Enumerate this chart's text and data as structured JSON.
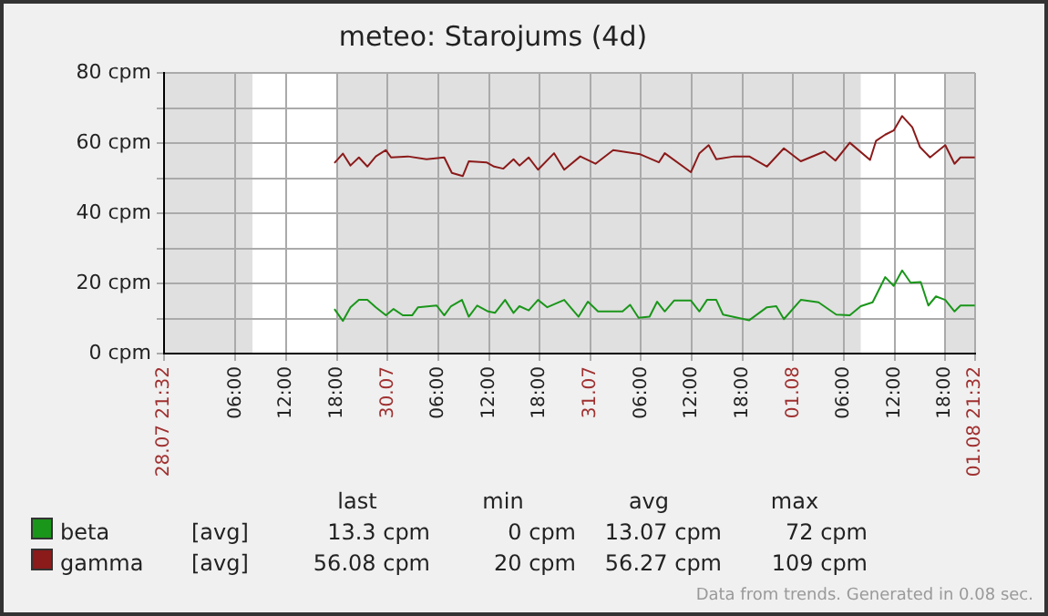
{
  "chart_data": {
    "type": "line",
    "title": "meteo: Starojums (4d)",
    "marker": "none",
    "grid": true,
    "legend": "bottom",
    "xlim": [
      "--07-28T21:32",
      "--08-01T21:32"
    ],
    "xticks": [
      {
        "value": "--07-28T21:32",
        "label": "28.07 21:32"
      },
      {
        "value": "--07-29T06:00",
        "label": "06:00"
      },
      {
        "value": "--07-29T12:00",
        "label": "12:00"
      },
      {
        "value": "--07-29T18:00",
        "label": "18:00"
      },
      {
        "value": "--07-30T00:00",
        "label": "30.07"
      },
      {
        "value": "--07-30T06:00",
        "label": "06:00"
      },
      {
        "value": "--07-30T12:00",
        "label": "12:00"
      },
      {
        "value": "--07-30T18:00",
        "label": "18:00"
      },
      {
        "value": "--07-31T00:00",
        "label": "31.07"
      },
      {
        "value": "--07-31T06:00",
        "label": "06:00"
      },
      {
        "value": "--07-31T12:00",
        "label": "12:00"
      },
      {
        "value": "--07-31T18:00",
        "label": "18:00"
      },
      {
        "value": "--08-01T00:00",
        "label": "01.08"
      },
      {
        "value": "--08-01T06:00",
        "label": "06:00"
      },
      {
        "value": "--08-01T12:00",
        "label": "12:00"
      },
      {
        "value": "--08-01T18:00",
        "label": "18:00"
      },
      {
        "value": "--08-01T21:32",
        "label": "01.08 21:32"
      }
    ],
    "ylim": [
      0,
      80
    ],
    "yticks": [
      {
        "value": 0,
        "label": "0 cpm"
      },
      {
        "value": 10,
        "label": null
      },
      {
        "value": 20,
        "label": "20 cpm"
      },
      {
        "value": 30,
        "label": null
      },
      {
        "value": 40,
        "label": "40 cpm"
      },
      {
        "value": 50,
        "label": null
      },
      {
        "value": 60,
        "label": "60 cpm"
      },
      {
        "value": 70,
        "label": null
      },
      {
        "value": 80,
        "label": "80 cpm"
      }
    ],
    "bands": [
      {
        "axis": "x",
        "from": "--07-28T21:32",
        "to": "--07-29T08:00",
        "color": "#e0e0e0"
      },
      {
        "axis": "x",
        "from": "--07-29T18:00",
        "to": "--08-01T08:00",
        "color": "#e0e0e0"
      },
      {
        "axis": "x",
        "from": "--08-01T18:00",
        "to": "--08-01T21:32",
        "color": "#e0e0e0"
      }
    ],
    "series": [
      {
        "name": "beta",
        "color": "#1a961a",
        "x": [
          "--07-29T17:42",
          "--07-29T18:42",
          "--07-29T19:36",
          "--07-29T20:36",
          "--07-29T21:36",
          "--07-29T22:36",
          "--07-29T23:48",
          "--07-30T00:42",
          "--07-30T01:48",
          "--07-30T02:54",
          "--07-30T03:36",
          "--07-30T05:48",
          "--07-30T06:42",
          "--07-30T07:30",
          "--07-30T08:48",
          "--07-30T09:36",
          "--07-30T10:36",
          "--07-30T11:54",
          "--07-30T12:42",
          "--07-30T13:54",
          "--07-30T14:54",
          "--07-30T15:36",
          "--07-30T16:42",
          "--07-30T17:48",
          "--07-30T18:54",
          "--07-30T20:54",
          "--07-30T22:36",
          "--07-30T23:42",
          "--07-31T00:54",
          "--07-31T03:48",
          "--07-31T04:42",
          "--07-31T05:42",
          "--07-31T07:00",
          "--07-31T07:54",
          "--07-31T08:48",
          "--07-31T09:54",
          "--07-31T11:54",
          "--07-31T12:54",
          "--07-31T13:48",
          "--07-31T14:54",
          "--07-31T15:42",
          "--07-31T18:48",
          "--07-31T20:54",
          "--07-31T22:00",
          "--07-31T22:54",
          "--08-01T00:54",
          "--08-01T03:00",
          "--08-01T05:06",
          "--08-01T06:42",
          "--08-01T08:00",
          "--08-01T09:24",
          "--08-01T10:54",
          "--08-01T11:54",
          "--08-01T12:54",
          "--08-01T13:54",
          "--08-01T15:06",
          "--08-01T16:00",
          "--08-01T16:54",
          "--08-01T18:00",
          "--08-01T19:06",
          "--08-01T19:48",
          "--08-01T21:30"
        ],
        "values": [
          12.7,
          9.3,
          13.2,
          15.3,
          15.3,
          13.2,
          10.9,
          12.7,
          10.9,
          10.9,
          13.2,
          13.7,
          10.9,
          13.5,
          15.3,
          10.5,
          13.7,
          12,
          11.6,
          15.3,
          11.6,
          13.5,
          12.3,
          15.3,
          13.2,
          15.3,
          10.5,
          14.8,
          12,
          12,
          13.9,
          10.2,
          10.5,
          14.8,
          12,
          15.1,
          15.1,
          12,
          15.3,
          15.3,
          11.1,
          9.5,
          13.2,
          13.5,
          9.8,
          15.3,
          14.6,
          11.1,
          10.9,
          13.5,
          14.6,
          21.8,
          19.3,
          23.7,
          20.2,
          20.4,
          13.7,
          16.3,
          15.3,
          12,
          13.7,
          13.7
        ]
      },
      {
        "name": "gamma",
        "color": "#8b1a1a",
        "x": [
          "--07-29T17:42",
          "--07-29T18:42",
          "--07-29T19:36",
          "--07-29T20:36",
          "--07-29T21:36",
          "--07-29T22:36",
          "--07-29T23:48",
          "--07-30T00:24",
          "--07-30T02:24",
          "--07-30T04:36",
          "--07-30T06:42",
          "--07-30T07:36",
          "--07-30T08:54",
          "--07-30T09:36",
          "--07-30T11:42",
          "--07-30T12:36",
          "--07-30T13:42",
          "--07-30T14:54",
          "--07-30T15:36",
          "--07-30T16:42",
          "--07-30T17:48",
          "--07-30T19:42",
          "--07-30T20:54",
          "--07-30T22:48",
          "--07-31T00:36",
          "--07-31T02:42",
          "--07-31T05:54",
          "--07-31T08:06",
          "--07-31T08:48",
          "--07-31T11:54",
          "--07-31T12:54",
          "--07-31T14:00",
          "--07-31T14:54",
          "--07-31T17:00",
          "--07-31T18:48",
          "--07-31T20:54",
          "--07-31T22:54",
          "--08-01T00:54",
          "--08-01T03:42",
          "--08-01T05:00",
          "--08-01T06:42",
          "--08-01T09:06",
          "--08-01T09:48",
          "--08-01T10:54",
          "--08-01T11:54",
          "--08-01T12:54",
          "--08-01T14:06",
          "--08-01T15:00",
          "--08-01T16:12",
          "--08-01T18:00",
          "--08-01T19:06",
          "--08-01T19:48",
          "--08-01T21:30"
        ],
        "values": [
          54.3,
          57,
          53.6,
          55.9,
          53.3,
          56.2,
          58,
          55.9,
          56.2,
          55.4,
          55.9,
          51.5,
          50.6,
          54.8,
          54.5,
          53.3,
          52.7,
          55.4,
          53.6,
          55.9,
          52.4,
          57.1,
          52.4,
          56.2,
          54.1,
          58,
          56.8,
          54.5,
          57.1,
          51.7,
          57.1,
          59.4,
          55.4,
          56.2,
          56.2,
          53.3,
          58.5,
          54.8,
          57.6,
          55,
          60.1,
          55.2,
          60.6,
          62.4,
          63.6,
          67.7,
          64.5,
          58.9,
          55.9,
          59.4,
          54.1,
          55.9,
          55.9
        ]
      }
    ],
    "annotations": [
      "last",
      "min",
      "avg",
      "max",
      "[avg]",
      "13.3 cpm",
      "0 cpm",
      "13.07 cpm",
      "72 cpm",
      "[avg]",
      "56.08 cpm",
      "20 cpm",
      "56.27 cpm",
      "109 cpm",
      "Data from trends. Generated in 0.08 sec."
    ]
  }
}
